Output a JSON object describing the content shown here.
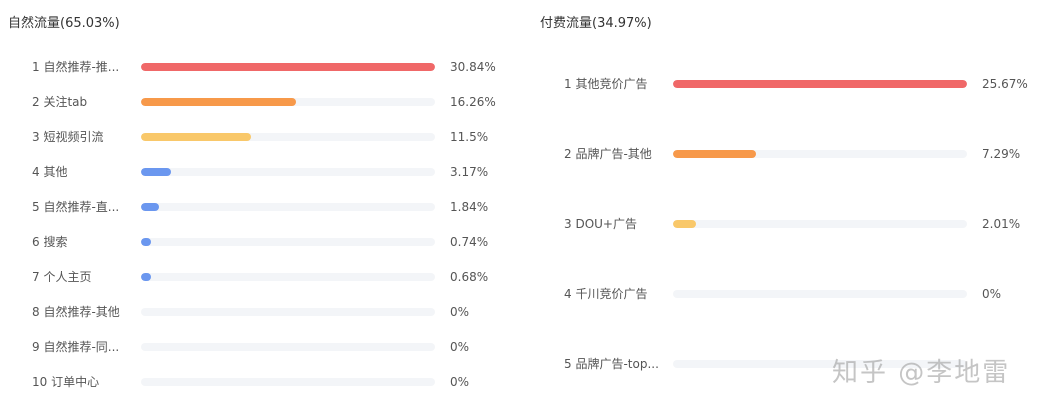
{
  "chart_data": [
    {
      "type": "bar",
      "title": "自然流量(65.03%)",
      "xlim": [
        0,
        30.84
      ],
      "categories": [
        "1 自然推荐-推...",
        "2 关注tab",
        "3 短视频引流",
        "4 其他",
        "5 自然推荐-直...",
        "6 搜索",
        "7 个人主页",
        "8 自然推荐-其他",
        "9 自然推荐-同...",
        "10 订单中心"
      ],
      "values": [
        30.84,
        16.26,
        11.5,
        3.17,
        1.84,
        0.74,
        0.68,
        0,
        0,
        0
      ],
      "value_labels": [
        "30.84%",
        "16.26%",
        "11.5%",
        "3.17%",
        "1.84%",
        "0.74%",
        "0.68%",
        "0%",
        "0%",
        "0%"
      ],
      "colors": [
        "#f06868",
        "#f7994a",
        "#f9c86a",
        "#6b97ef",
        "#6b97ef",
        "#6b97ef",
        "#6b97ef",
        "#6b97ef",
        "#6b97ef",
        "#6b97ef"
      ],
      "track_color": "#f3f5f8"
    },
    {
      "type": "bar",
      "title": "付费流量(34.97%)",
      "xlim": [
        0,
        25.67
      ],
      "categories": [
        "1 其他竞价广告",
        "2 品牌广告-其他",
        "3 DOU+广告",
        "4 千川竞价广告",
        "5 品牌广告-top..."
      ],
      "values": [
        25.67,
        7.29,
        2.01,
        0,
        0
      ],
      "value_labels": [
        "25.67%",
        "7.29%",
        "2.01%",
        "0%",
        ""
      ],
      "colors": [
        "#f06868",
        "#f7994a",
        "#f9c86a",
        "#6b97ef",
        "#6b97ef"
      ],
      "track_color": "#f3f5f8"
    }
  ],
  "watermark": "知乎 @李地雷"
}
